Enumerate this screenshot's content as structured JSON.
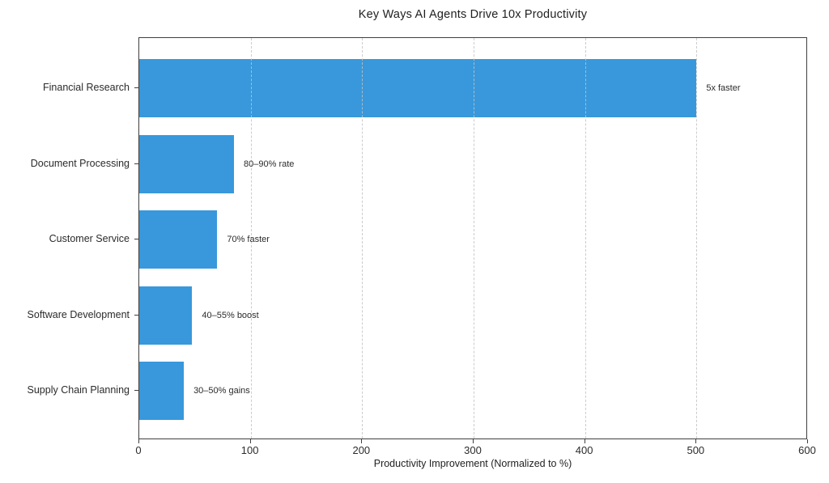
{
  "chart_data": {
    "type": "bar",
    "orientation": "horizontal",
    "title": "Key Ways AI Agents Drive 10x Productivity",
    "xlabel": "Productivity Improvement (Normalized to %)",
    "ylabel": "",
    "categories": [
      "Financial Research",
      "Document Processing",
      "Customer Service",
      "Software Development",
      "Supply Chain Planning"
    ],
    "values": [
      500,
      85,
      70,
      47.5,
      40
    ],
    "annotations": [
      "5x faster",
      "80–90% rate",
      "70% faster",
      "40–55% boost",
      "30–50% gains"
    ],
    "xlim": [
      0,
      600
    ],
    "xticks": [
      0,
      100,
      200,
      300,
      400,
      500,
      600
    ],
    "grid": "vertical-dashed",
    "legend": "none",
    "bar_color": "#3898db"
  }
}
